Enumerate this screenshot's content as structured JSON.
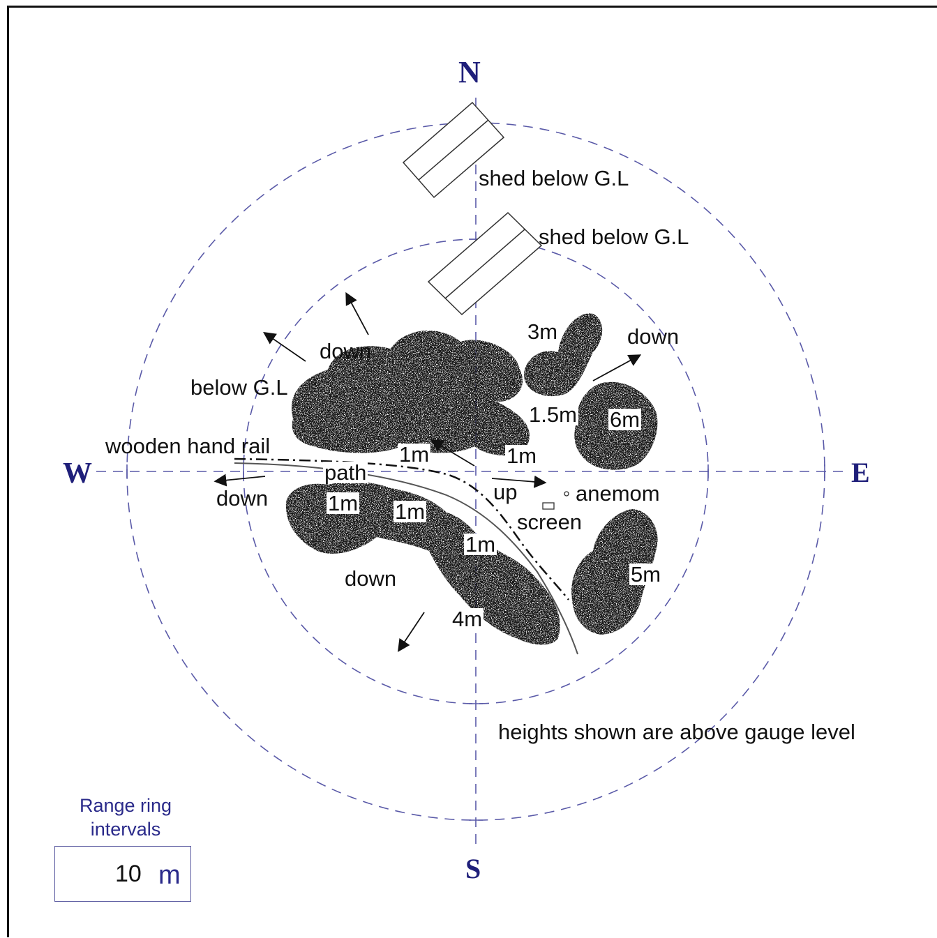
{
  "compass": {
    "north": "N",
    "south": "S",
    "east": "E",
    "west": "W"
  },
  "labels": {
    "shed_outer": "shed below G.L",
    "shed_inner": "shed below G.L",
    "height_3m": "3m",
    "down_ne": "down",
    "down_nw": "down",
    "below_gl": "below G.L",
    "wooden_hand_rail": "wooden hand rail",
    "height_1_5m": "1.5m",
    "height_6m": "6m",
    "height_1m_a": "1m",
    "height_1m_b": "1m",
    "path": "path",
    "down_w": "down",
    "height_1m_c": "1m",
    "height_1m_d": "1m",
    "up": "up",
    "anemom": "anemom",
    "screen": "screen",
    "height_1m_e": "1m",
    "height_5m": "5m",
    "down_sw": "down",
    "height_4m": "4m",
    "note": "heights shown are above gauge level"
  },
  "legend": {
    "title": "Range ring intervals",
    "value": "10",
    "unit": "m"
  },
  "colors": {
    "ring": "#5a5aa8",
    "compass": "#1f1f7a",
    "foliage": "#1a1a1a"
  }
}
